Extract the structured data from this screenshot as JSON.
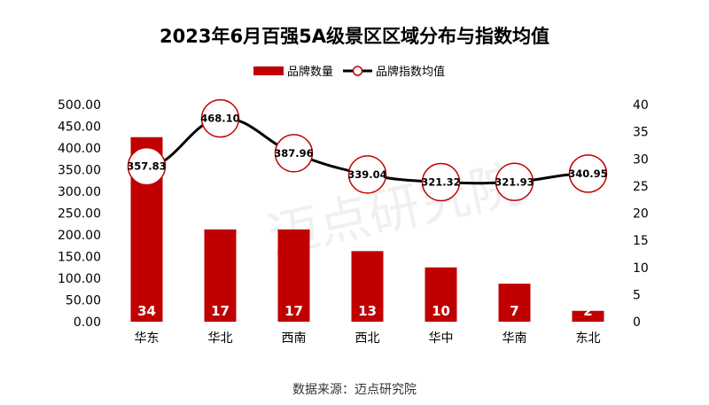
{
  "chart_data": {
    "type": "bar+line",
    "title": "2023年6月百强5A级景区区域分布与指数均值",
    "categories": [
      "华东",
      "华北",
      "西南",
      "西北",
      "华中",
      "华南",
      "东北"
    ],
    "series": [
      {
        "name": "品牌数量",
        "type": "bar",
        "axis": "right",
        "color": "#C00000",
        "values": [
          34,
          17,
          17,
          13,
          10,
          7,
          2
        ]
      },
      {
        "name": "品牌指数均值",
        "type": "line",
        "axis": "left",
        "color": "#000000",
        "marker_color": "#C00000",
        "values": [
          357.83,
          468.1,
          387.96,
          339.04,
          321.32,
          321.93,
          340.95
        ]
      }
    ],
    "left_axis": {
      "range": [
        0,
        500
      ],
      "ticks": [
        "0.00",
        "50.00",
        "100.00",
        "150.00",
        "200.00",
        "250.00",
        "300.00",
        "350.00",
        "400.00",
        "450.00",
        "500.00"
      ]
    },
    "right_axis": {
      "range": [
        0,
        40
      ],
      "ticks": [
        "0",
        "5",
        "10",
        "15",
        "20",
        "25",
        "30",
        "35",
        "40"
      ]
    },
    "legend_position": "top",
    "grid": false,
    "source": "数据来源：迈点研究院",
    "watermark": "迈点研究院 MEADIN ACADEMY"
  }
}
